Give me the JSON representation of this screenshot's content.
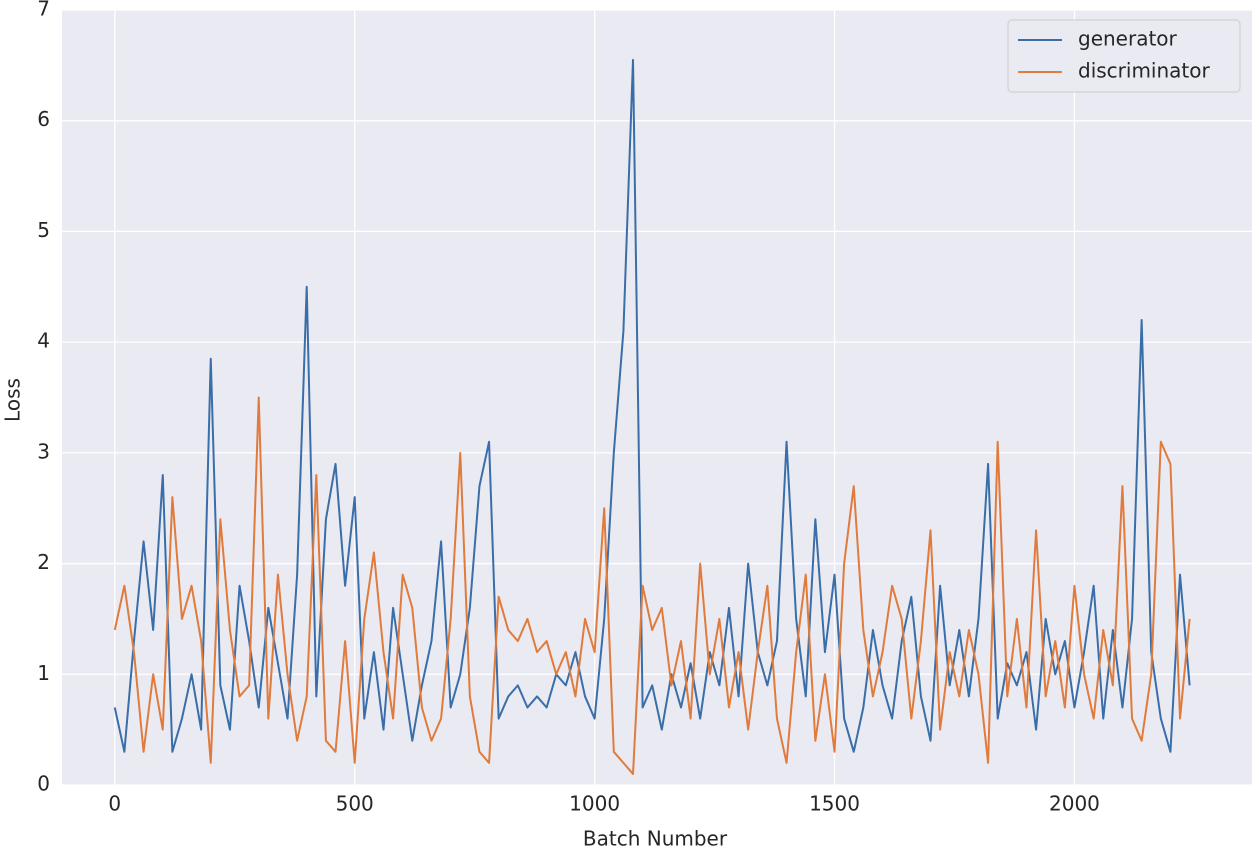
{
  "chart_data": {
    "type": "line",
    "xlabel": "Batch Number",
    "ylabel": "Loss",
    "x": [
      0,
      20,
      40,
      60,
      80,
      100,
      120,
      140,
      160,
      180,
      200,
      220,
      240,
      260,
      280,
      300,
      320,
      340,
      360,
      380,
      400,
      420,
      440,
      460,
      480,
      500,
      520,
      540,
      560,
      580,
      600,
      620,
      640,
      660,
      680,
      700,
      720,
      740,
      760,
      780,
      800,
      820,
      840,
      860,
      880,
      900,
      920,
      940,
      960,
      980,
      1000,
      1020,
      1040,
      1060,
      1080,
      1100,
      1120,
      1140,
      1160,
      1180,
      1200,
      1220,
      1240,
      1260,
      1280,
      1300,
      1320,
      1340,
      1360,
      1380,
      1400,
      1420,
      1440,
      1460,
      1480,
      1500,
      1520,
      1540,
      1560,
      1580,
      1600,
      1620,
      1640,
      1660,
      1680,
      1700,
      1720,
      1740,
      1760,
      1780,
      1800,
      1820,
      1840,
      1860,
      1880,
      1900,
      1920,
      1940,
      1960,
      1980,
      2000,
      2020,
      2040,
      2060,
      2080,
      2100,
      2120,
      2140,
      2160,
      2180,
      2200,
      2220,
      2240
    ],
    "series": [
      {
        "name": "generator",
        "color": "#3a6ea9",
        "values": [
          0.7,
          0.3,
          1.3,
          2.2,
          1.4,
          2.8,
          0.3,
          0.6,
          1.0,
          0.5,
          3.85,
          0.9,
          0.5,
          1.8,
          1.3,
          0.7,
          1.6,
          1.1,
          0.6,
          1.9,
          4.5,
          0.8,
          2.4,
          2.9,
          1.8,
          2.6,
          0.6,
          1.2,
          0.5,
          1.6,
          1.0,
          0.4,
          0.9,
          1.3,
          2.2,
          0.7,
          1.0,
          1.6,
          2.7,
          3.1,
          0.6,
          0.8,
          0.9,
          0.7,
          0.8,
          0.7,
          1.0,
          0.9,
          1.2,
          0.8,
          0.6,
          1.5,
          3.0,
          4.1,
          6.55,
          0.7,
          0.9,
          0.5,
          1.0,
          0.7,
          1.1,
          0.6,
          1.2,
          0.9,
          1.6,
          0.8,
          2.0,
          1.2,
          0.9,
          1.3,
          3.1,
          1.5,
          0.8,
          2.4,
          1.2,
          1.9,
          0.6,
          0.3,
          0.7,
          1.4,
          0.9,
          0.6,
          1.3,
          1.7,
          0.8,
          0.4,
          1.8,
          0.9,
          1.4,
          0.8,
          1.5,
          2.9,
          0.6,
          1.1,
          0.9,
          1.2,
          0.5,
          1.5,
          1.0,
          1.3,
          0.7,
          1.2,
          1.8,
          0.6,
          1.4,
          0.7,
          1.5,
          4.2,
          1.2,
          0.6,
          0.3,
          1.9,
          0.9
        ]
      },
      {
        "name": "discriminator",
        "color": "#e07b3c",
        "values": [
          1.4,
          1.8,
          1.2,
          0.3,
          1.0,
          0.5,
          2.6,
          1.5,
          1.8,
          1.3,
          0.2,
          2.4,
          1.4,
          0.8,
          0.9,
          3.5,
          0.6,
          1.9,
          1.0,
          0.4,
          0.8,
          2.8,
          0.4,
          0.3,
          1.3,
          0.2,
          1.5,
          2.1,
          1.2,
          0.6,
          1.9,
          1.6,
          0.7,
          0.4,
          0.6,
          1.5,
          3.0,
          0.8,
          0.3,
          0.2,
          1.7,
          1.4,
          1.3,
          1.5,
          1.2,
          1.3,
          1.0,
          1.2,
          0.8,
          1.5,
          1.2,
          2.5,
          0.3,
          0.2,
          0.1,
          1.8,
          1.4,
          1.6,
          0.9,
          1.3,
          0.6,
          2.0,
          1.0,
          1.5,
          0.7,
          1.2,
          0.5,
          1.2,
          1.8,
          0.6,
          0.2,
          1.2,
          1.9,
          0.4,
          1.0,
          0.3,
          2.0,
          2.7,
          1.4,
          0.8,
          1.2,
          1.8,
          1.5,
          0.6,
          1.3,
          2.3,
          0.5,
          1.2,
          0.8,
          1.4,
          1.0,
          0.2,
          3.1,
          0.8,
          1.5,
          0.7,
          2.3,
          0.8,
          1.3,
          0.7,
          1.8,
          1.0,
          0.6,
          1.4,
          0.9,
          2.7,
          0.6,
          0.4,
          1.0,
          3.1,
          2.9,
          0.6,
          1.5
        ]
      }
    ],
    "xlim": [
      -110,
      2370
    ],
    "ylim": [
      0,
      7
    ],
    "xticks": [
      0,
      500,
      1000,
      1500,
      2000
    ],
    "yticks": [
      0,
      1,
      2,
      3,
      4,
      5,
      6,
      7
    ],
    "grid": true,
    "legend": "upper right"
  }
}
